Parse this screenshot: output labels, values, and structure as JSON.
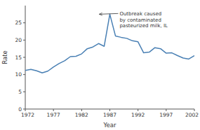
{
  "chart_data": {
    "type": "line",
    "x": [
      1972,
      1973,
      1974,
      1975,
      1976,
      1977,
      1978,
      1979,
      1980,
      1981,
      1982,
      1983,
      1984,
      1985,
      1986,
      1987,
      1988,
      1989,
      1990,
      1991,
      1992,
      1993,
      1994,
      1995,
      1996,
      1997,
      1998,
      1999,
      2000,
      2001,
      2002
    ],
    "values": [
      11.2,
      11.5,
      11.1,
      10.5,
      11.0,
      12.2,
      13.2,
      14.0,
      15.2,
      15.3,
      16.0,
      17.5,
      18.0,
      19.0,
      18.2,
      27.5,
      21.2,
      20.8,
      20.5,
      19.8,
      19.5,
      16.3,
      16.5,
      17.8,
      17.5,
      16.2,
      16.3,
      15.5,
      14.8,
      14.5,
      15.5
    ],
    "color": "#4a80b4",
    "x_label": "Year",
    "y_label": "Rate",
    "xlim": [
      1972,
      2002
    ],
    "ylim": [
      0,
      30
    ],
    "xticks": [
      1972,
      1977,
      1982,
      1987,
      1992,
      1997,
      2002
    ],
    "yticks": [
      0,
      5,
      10,
      15,
      20,
      25
    ],
    "grid": false,
    "annotations": [
      {
        "text": "Outbreak caused\nby contaminated\npasteurized milk, IL",
        "x": 1985,
        "y": 27.5
      }
    ]
  }
}
